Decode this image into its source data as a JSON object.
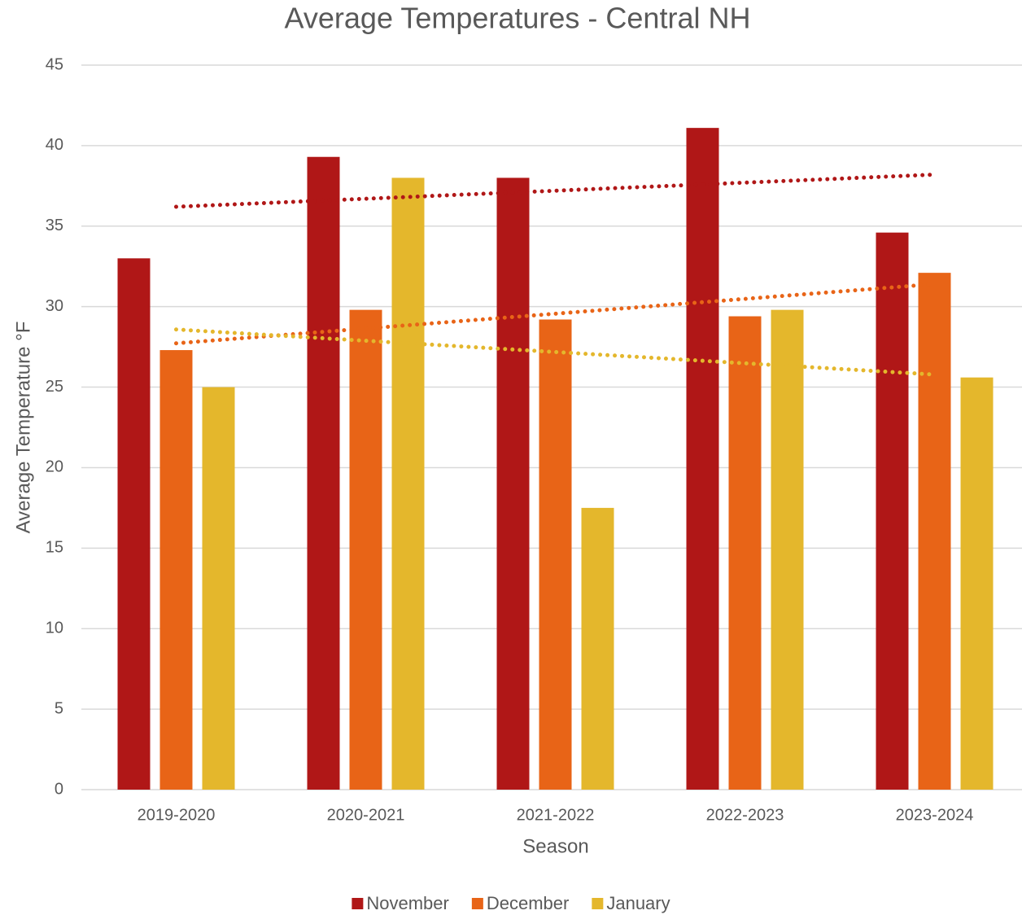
{
  "chart_data": {
    "type": "bar",
    "title": "Average Temperatures - Central NH",
    "x_label": "Season",
    "y_label": "Average Temperature °F",
    "categories": [
      "2019-2020",
      "2020-2021",
      "2021-2022",
      "2022-2023",
      "2023-2024"
    ],
    "series": [
      {
        "name": "November",
        "color": "#b01717",
        "values": [
          33.0,
          39.3,
          38.0,
          41.1,
          34.6
        ]
      },
      {
        "name": "December",
        "color": "#e86417",
        "values": [
          27.3,
          29.8,
          29.2,
          29.4,
          32.1
        ]
      },
      {
        "name": "January",
        "color": "#e4b72c",
        "values": [
          25.0,
          38.0,
          17.5,
          29.8,
          25.6
        ]
      }
    ],
    "ylim": [
      0,
      45
    ],
    "yticks": [
      0,
      5,
      10,
      15,
      20,
      25,
      30,
      35,
      40,
      45
    ],
    "grid": true,
    "trendline": "linear",
    "legend": "bottom"
  }
}
